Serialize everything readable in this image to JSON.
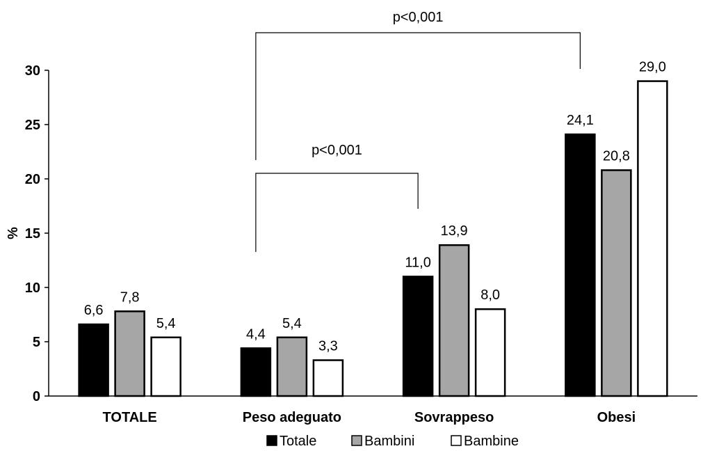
{
  "chart_data": {
    "type": "bar",
    "categories": [
      "TOTALE",
      "Peso adeguato",
      "Sovrappeso",
      "Obesi"
    ],
    "series": [
      {
        "name": "Totale",
        "values": [
          6.6,
          4.4,
          11.0,
          24.1
        ],
        "labels": [
          "6,6",
          "4,4",
          "11,0",
          "24,1"
        ],
        "color": "#000000"
      },
      {
        "name": "Bambini",
        "values": [
          7.8,
          5.4,
          13.9,
          20.8
        ],
        "labels": [
          "7,8",
          "5,4",
          "13,9",
          "20,8"
        ],
        "color": "#a6a6a6"
      },
      {
        "name": "Bambine",
        "values": [
          5.4,
          3.3,
          8.0,
          29.0
        ],
        "labels": [
          "5,4",
          "3,3",
          "8,0",
          "29,0"
        ],
        "color": "#ffffff"
      }
    ],
    "ylabel": "%",
    "ylim": [
      0,
      30
    ],
    "yticks": [
      0,
      5,
      10,
      15,
      20,
      25,
      30
    ],
    "grid": false,
    "legend": "bottom-center",
    "annotations": [
      {
        "text": "p<0,001",
        "from_category": 1,
        "to_category": 3
      },
      {
        "text": "p<0,001",
        "from_category": 1,
        "to_category": 2
      }
    ]
  }
}
